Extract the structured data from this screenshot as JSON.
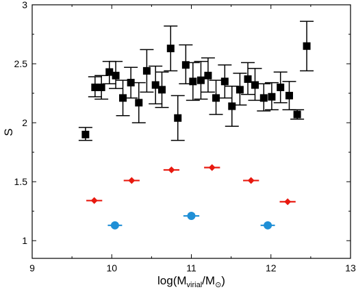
{
  "chart_data": {
    "type": "scatter",
    "title": "",
    "xlabel": {
      "prefix": "log(M",
      "sub1": "virial",
      "mid": "/M",
      "sub2": "⊙",
      "suffix": ")"
    },
    "ylabel": "S",
    "xlim": [
      9,
      13
    ],
    "ylim": [
      0.85,
      3.0
    ],
    "xticks": [
      "9",
      "10",
      "11",
      "12",
      "13"
    ],
    "yticks": [
      "1",
      "1.5",
      "2",
      "2.5",
      "3"
    ],
    "grid": false,
    "legend": "none",
    "series": [
      {
        "marker": "square",
        "color": "#000000",
        "points": [
          {
            "x": 9.67,
            "y": 1.9,
            "lo": 1.85,
            "hi": 1.96
          },
          {
            "x": 9.79,
            "y": 2.3,
            "lo": 2.22,
            "hi": 2.39
          },
          {
            "x": 9.87,
            "y": 2.3,
            "lo": 2.2,
            "hi": 2.4
          },
          {
            "x": 9.97,
            "y": 2.43,
            "lo": 2.33,
            "hi": 2.52
          },
          {
            "x": 10.05,
            "y": 2.4,
            "lo": 2.29,
            "hi": 2.52
          },
          {
            "x": 10.14,
            "y": 2.21,
            "lo": 2.06,
            "hi": 2.36
          },
          {
            "x": 10.24,
            "y": 2.34,
            "lo": 2.21,
            "hi": 2.47
          },
          {
            "x": 10.34,
            "y": 2.17,
            "lo": 2.0,
            "hi": 2.34
          },
          {
            "x": 10.44,
            "y": 2.44,
            "lo": 2.26,
            "hi": 2.62
          },
          {
            "x": 10.55,
            "y": 2.32,
            "lo": 2.16,
            "hi": 2.48
          },
          {
            "x": 10.63,
            "y": 2.28,
            "lo": 2.13,
            "hi": 2.43
          },
          {
            "x": 10.74,
            "y": 2.63,
            "lo": 2.44,
            "hi": 2.82
          },
          {
            "x": 10.83,
            "y": 2.04,
            "lo": 1.85,
            "hi": 2.23
          },
          {
            "x": 10.93,
            "y": 2.49,
            "lo": 2.33,
            "hi": 2.66
          },
          {
            "x": 11.02,
            "y": 2.35,
            "lo": 2.19,
            "hi": 2.51
          },
          {
            "x": 11.12,
            "y": 2.36,
            "lo": 2.2,
            "hi": 2.52
          },
          {
            "x": 11.21,
            "y": 2.4,
            "lo": 2.26,
            "hi": 2.55
          },
          {
            "x": 11.31,
            "y": 2.21,
            "lo": 2.07,
            "hi": 2.36
          },
          {
            "x": 11.42,
            "y": 2.35,
            "lo": 2.21,
            "hi": 2.49
          },
          {
            "x": 11.51,
            "y": 2.14,
            "lo": 1.97,
            "hi": 2.31
          },
          {
            "x": 11.61,
            "y": 2.28,
            "lo": 2.15,
            "hi": 2.42
          },
          {
            "x": 11.71,
            "y": 2.37,
            "lo": 2.24,
            "hi": 2.51
          },
          {
            "x": 11.8,
            "y": 2.32,
            "lo": 2.19,
            "hi": 2.46
          },
          {
            "x": 11.91,
            "y": 2.21,
            "lo": 2.1,
            "hi": 2.33
          },
          {
            "x": 12.01,
            "y": 2.22,
            "lo": 2.11,
            "hi": 2.34
          },
          {
            "x": 12.12,
            "y": 2.3,
            "lo": 2.17,
            "hi": 2.43
          },
          {
            "x": 12.23,
            "y": 2.23,
            "lo": 2.11,
            "hi": 2.35
          },
          {
            "x": 12.33,
            "y": 2.07,
            "lo": 2.03,
            "hi": 2.11
          },
          {
            "x": 12.45,
            "y": 2.65,
            "lo": 2.44,
            "hi": 2.86
          }
        ]
      },
      {
        "marker": "diamond",
        "color": "#e8190f",
        "points": [
          {
            "x": 9.78,
            "y": 1.34,
            "xerr": 0.1
          },
          {
            "x": 10.25,
            "y": 1.51,
            "xerr": 0.1
          },
          {
            "x": 10.75,
            "y": 1.6,
            "xerr": 0.1
          },
          {
            "x": 11.26,
            "y": 1.62,
            "xerr": 0.1
          },
          {
            "x": 11.75,
            "y": 1.51,
            "xerr": 0.1
          },
          {
            "x": 12.21,
            "y": 1.33,
            "xerr": 0.1
          }
        ]
      },
      {
        "marker": "circle",
        "color": "#1f8fd6",
        "points": [
          {
            "x": 10.04,
            "y": 1.13,
            "xerr": 0.09
          },
          {
            "x": 11.0,
            "y": 1.21,
            "xerr": 0.1
          },
          {
            "x": 11.96,
            "y": 1.13,
            "xerr": 0.09
          }
        ]
      }
    ]
  }
}
